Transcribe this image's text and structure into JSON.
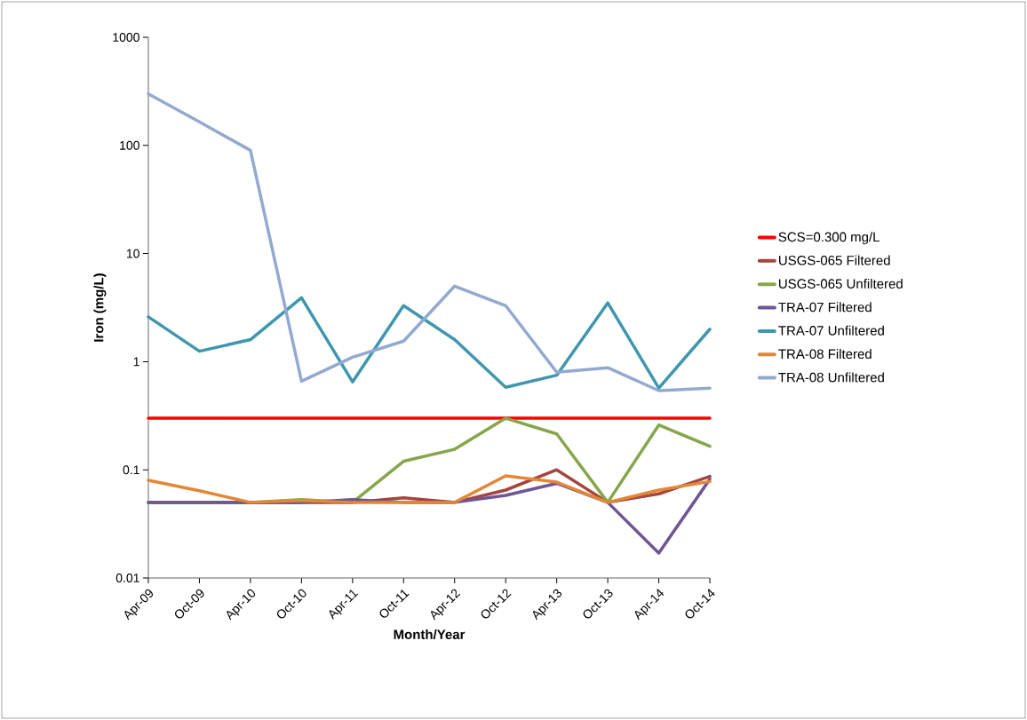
{
  "chart_data": {
    "type": "line",
    "xlabel": "Month/Year",
    "ylabel": "Iron (mg/L)",
    "categories": [
      "Apr-09",
      "Oct-09",
      "Apr-10",
      "Oct-10",
      "Apr-11",
      "Oct-11",
      "Apr-12",
      "Oct-12",
      "Apr-13",
      "Oct-13",
      "Apr-14",
      "Oct-14"
    ],
    "series": [
      {
        "name": "SCS=0.300 mg/L",
        "color": "#ff0000",
        "values": [
          0.3,
          0.3,
          0.3,
          0.3,
          0.3,
          0.3,
          0.3,
          0.3,
          0.3,
          0.3,
          0.3,
          0.3
        ]
      },
      {
        "name": "USGS-065 Filtered",
        "color": "#a5453f",
        "values": [
          0.05,
          0.05,
          0.05,
          0.05,
          0.05,
          0.055,
          0.05,
          0.065,
          0.1,
          0.05,
          0.06,
          0.087
        ]
      },
      {
        "name": "USGS-065 Unfiltered",
        "color": "#86a64a",
        "values": [
          0.05,
          0.05,
          0.05,
          0.053,
          0.05,
          0.12,
          0.155,
          0.3,
          0.215,
          0.05,
          0.26,
          0.165
        ]
      },
      {
        "name": "TRA-07 Filtered",
        "color": "#6e5593",
        "values": [
          0.05,
          0.05,
          0.05,
          0.05,
          0.053,
          0.05,
          0.05,
          0.058,
          0.075,
          0.05,
          0.017,
          0.082
        ]
      },
      {
        "name": "TRA-07 Unfiltered",
        "color": "#3f97ae",
        "values": [
          2.6,
          1.25,
          1.6,
          3.9,
          0.65,
          3.3,
          1.6,
          0.58,
          0.75,
          3.5,
          0.57,
          2.0
        ]
      },
      {
        "name": "TRA-08 Filtered",
        "color": "#e38736",
        "values": [
          0.08,
          0.064,
          0.05,
          0.052,
          0.05,
          0.05,
          0.05,
          0.088,
          0.077,
          0.05,
          0.065,
          0.078
        ]
      },
      {
        "name": "TRA-08 Unfiltered",
        "color": "#93a9cf",
        "values": [
          300,
          165,
          90,
          0.66,
          1.1,
          1.55,
          5.0,
          3.3,
          0.8,
          0.88,
          0.54,
          0.57
        ]
      }
    ],
    "log": "y",
    "ylim": [
      0.01,
      1000
    ],
    "yticks": [
      0.01,
      0.1,
      1,
      10,
      100,
      1000
    ],
    "legend": "right",
    "grid": false,
    "marker": "none",
    "line_style": "solid"
  }
}
